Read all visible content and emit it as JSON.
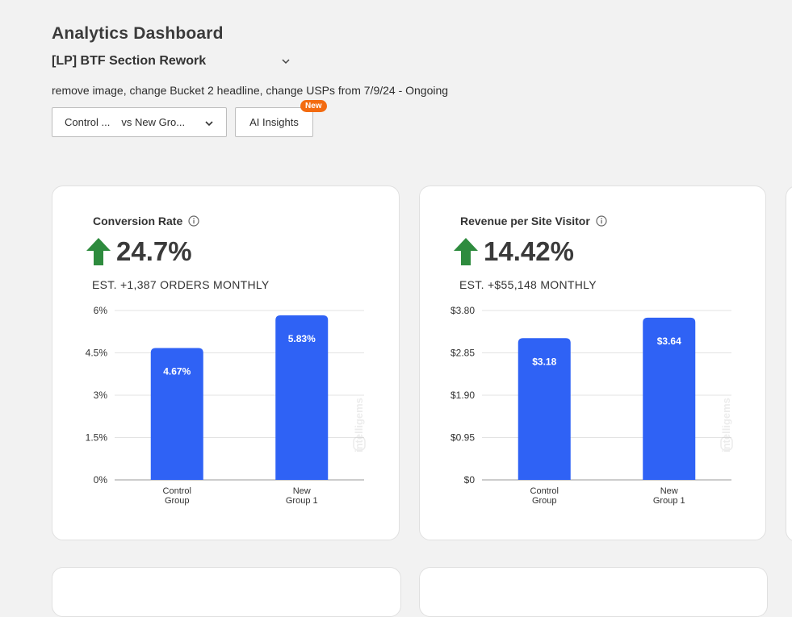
{
  "header": {
    "title": "Analytics Dashboard",
    "test_name": "[LP] BTF Section Rework",
    "description": "remove image, change Bucket 2 headline, change USPs from 7/9/24 - Ongoing"
  },
  "controls": {
    "compare_left": "Control ...",
    "compare_vs": "vs New Gro...",
    "ai_insights_label": "AI Insights",
    "new_badge": "New"
  },
  "colors": {
    "bar": "#2f62f5",
    "up_arrow": "#2e8b3e",
    "badge": "#f36b10"
  },
  "watermark": "intelligems",
  "cards": [
    {
      "title": "Conversion Rate",
      "lift": "24.7%",
      "estimate": "EST. +1,387 ORDERS MONTHLY",
      "chart_data": {
        "type": "bar",
        "categories": [
          [
            "Control",
            "Group"
          ],
          [
            "New",
            "Group 1"
          ]
        ],
        "values": [
          4.67,
          5.83
        ],
        "value_labels": [
          "4.67%",
          "5.83%"
        ],
        "yticks": [
          0,
          1.5,
          3,
          4.5,
          6
        ],
        "ytick_labels": [
          "0%",
          "1.5%",
          "3%",
          "4.5%",
          "6%"
        ],
        "ylim": [
          0,
          6
        ],
        "grid": true
      }
    },
    {
      "title": "Revenue per Site Visitor",
      "lift": "14.42%",
      "estimate": "EST. +$55,148 MONTHLY",
      "chart_data": {
        "type": "bar",
        "categories": [
          [
            "Control",
            "Group"
          ],
          [
            "New",
            "Group 1"
          ]
        ],
        "values": [
          3.18,
          3.64
        ],
        "value_labels": [
          "$3.18",
          "$3.64"
        ],
        "yticks": [
          0,
          0.95,
          1.9,
          2.85,
          3.8
        ],
        "ytick_labels": [
          "$0",
          "$0.95",
          "$1.90",
          "$2.85",
          "$3.80"
        ],
        "ylim": [
          0,
          3.8
        ],
        "grid": true
      }
    }
  ]
}
